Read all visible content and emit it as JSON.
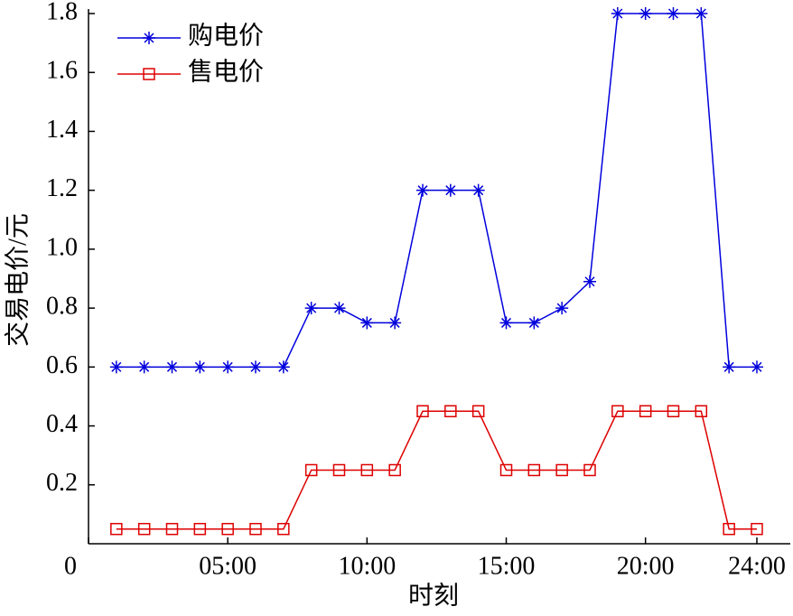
{
  "chart_data": {
    "type": "line",
    "x_label": "时刻",
    "y_label": "交易电价/元",
    "x": [
      1,
      2,
      3,
      4,
      5,
      6,
      7,
      8,
      9,
      10,
      11,
      12,
      13,
      14,
      15,
      16,
      17,
      18,
      19,
      20,
      21,
      22,
      23,
      24
    ],
    "series": [
      {
        "name": "购电价",
        "color": "#0000dd",
        "marker": "star",
        "values": [
          0.6,
          0.6,
          0.6,
          0.6,
          0.6,
          0.6,
          0.6,
          0.8,
          0.8,
          0.75,
          0.75,
          1.2,
          1.2,
          1.2,
          0.75,
          0.75,
          0.8,
          0.89,
          1.8,
          1.8,
          1.8,
          1.8,
          0.6,
          0.6
        ]
      },
      {
        "name": "售电价",
        "color": "#dd0000",
        "marker": "square",
        "values": [
          0.05,
          0.05,
          0.05,
          0.05,
          0.05,
          0.05,
          0.05,
          0.25,
          0.25,
          0.25,
          0.25,
          0.45,
          0.45,
          0.45,
          0.25,
          0.25,
          0.25,
          0.25,
          0.45,
          0.45,
          0.45,
          0.45,
          0.05,
          0.05
        ]
      }
    ],
    "xlim": [
      0,
      25.2
    ],
    "xticks": [
      0,
      {
        "value": 5,
        "label": "05:00"
      },
      {
        "value": 10,
        "label": "10:00"
      },
      {
        "value": 15,
        "label": "15:00"
      },
      {
        "value": 20,
        "label": "20:00"
      },
      {
        "value": 24,
        "label": "24:00"
      }
    ],
    "ylim": [
      0,
      1.8
    ],
    "yticks": [
      0.2,
      0.4,
      0.6,
      0.8,
      {
        "value": 1.0,
        "label": "1.0"
      },
      1.2,
      1.4,
      1.6,
      1.8
    ],
    "legend": "upper left",
    "grid": false
  }
}
